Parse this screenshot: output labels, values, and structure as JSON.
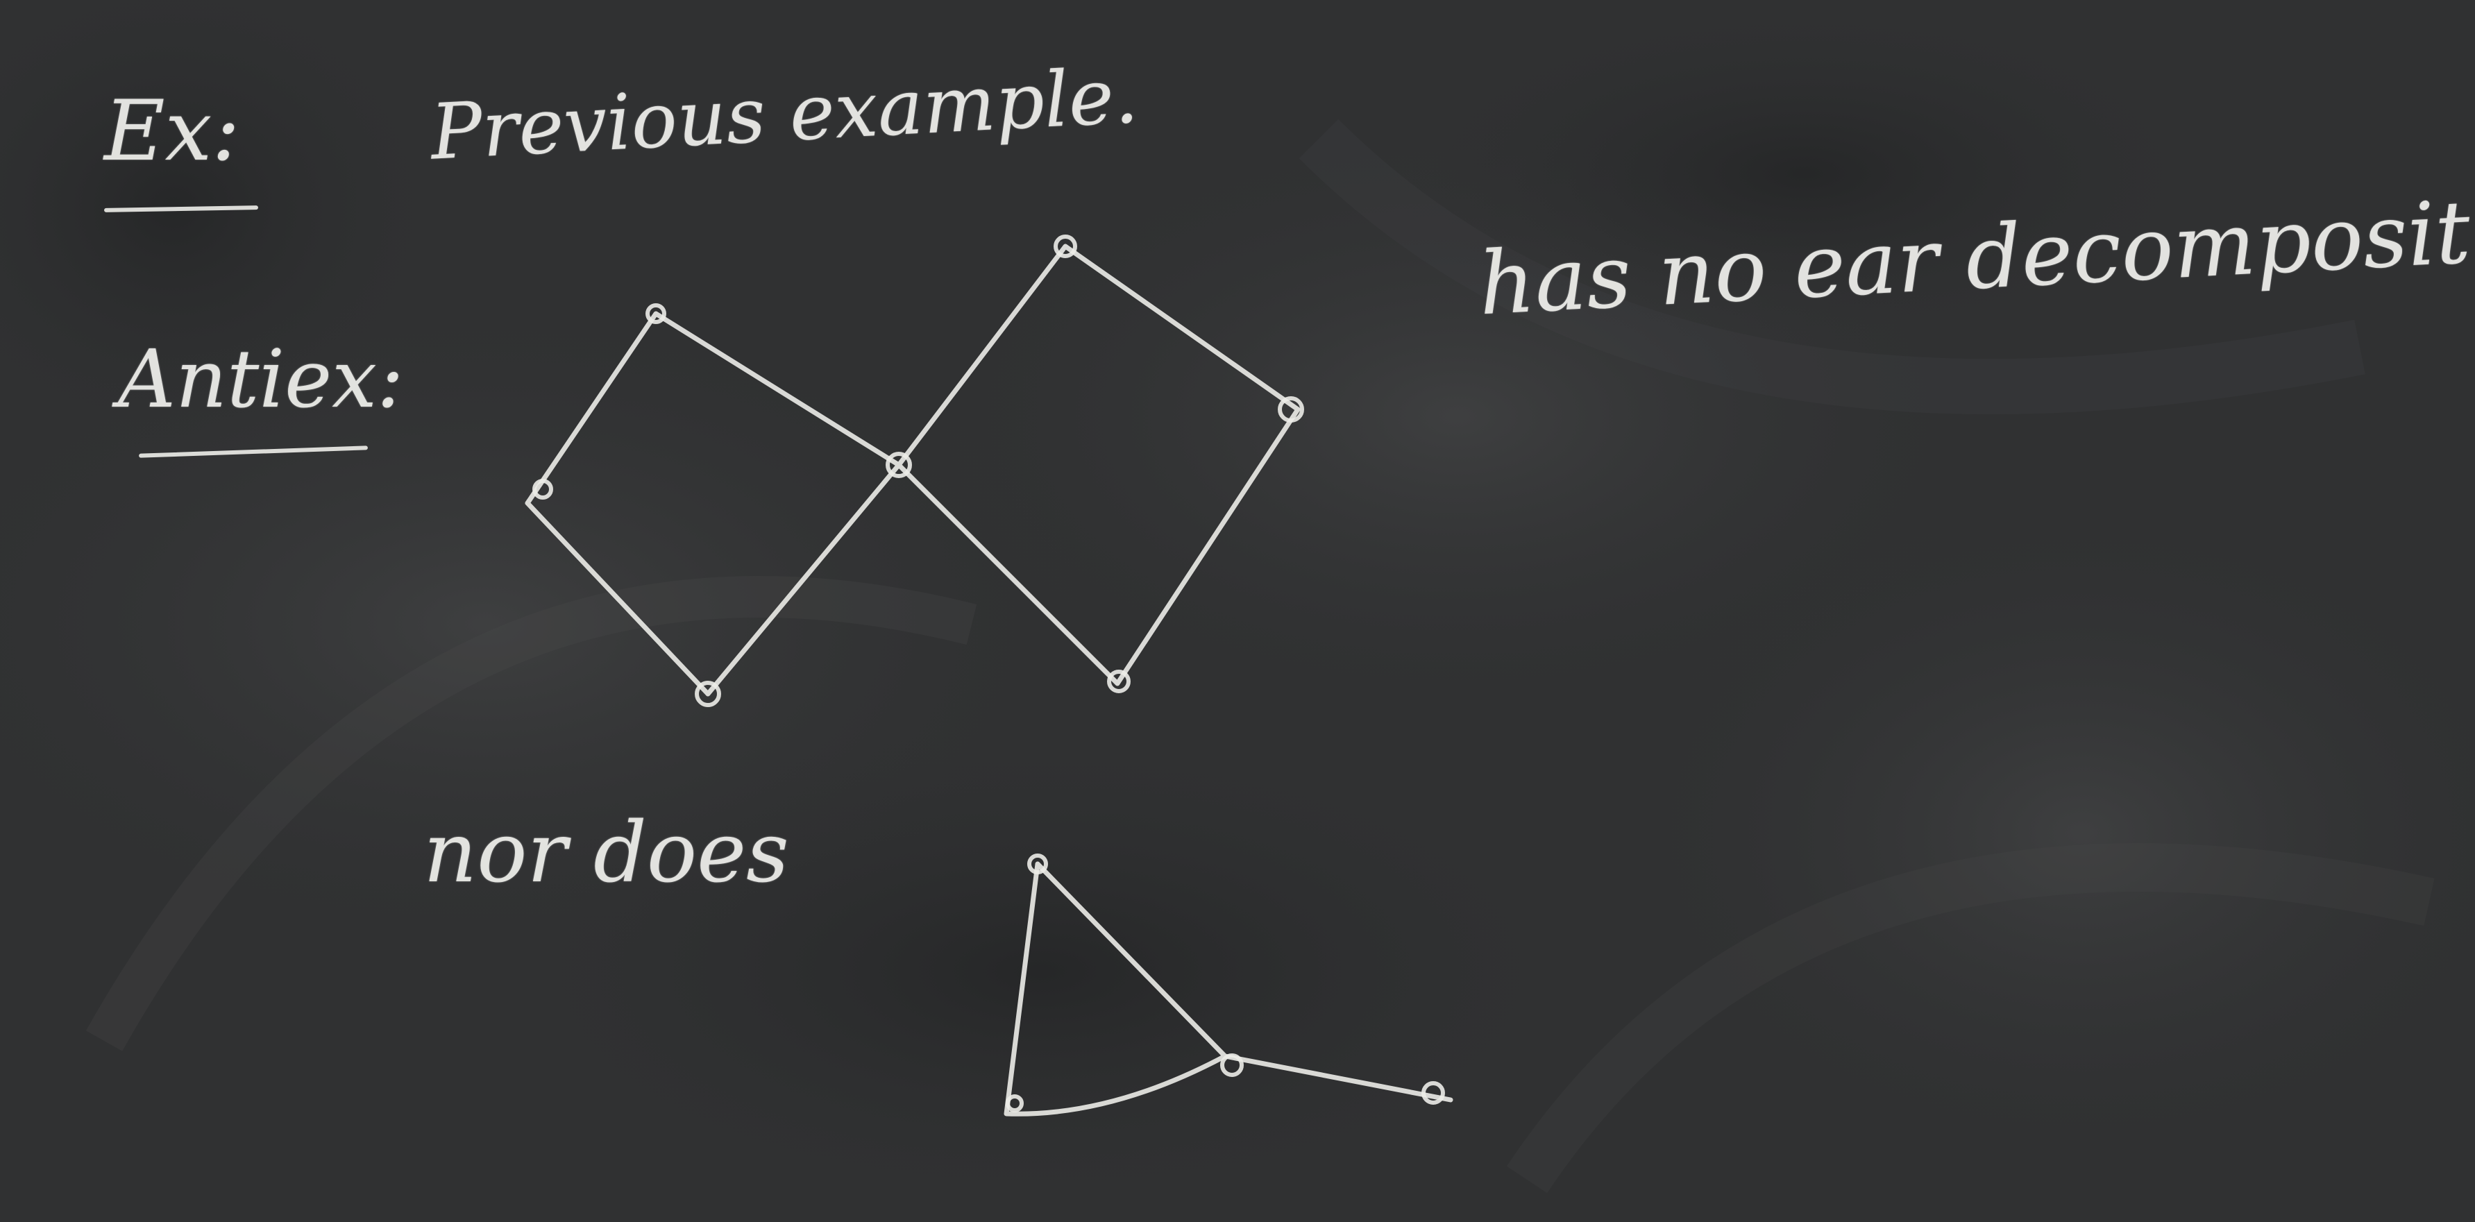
{
  "board": {
    "colors": {
      "slate": "#2f3031",
      "chalk": "#f2f2ee"
    }
  },
  "text": {
    "ex_label": "Ex:",
    "previous_example": "Previous example.",
    "antiex_label": "Antiex:",
    "has_no_ear": "has no ear decomposit",
    "nor_does": "nor does"
  }
}
